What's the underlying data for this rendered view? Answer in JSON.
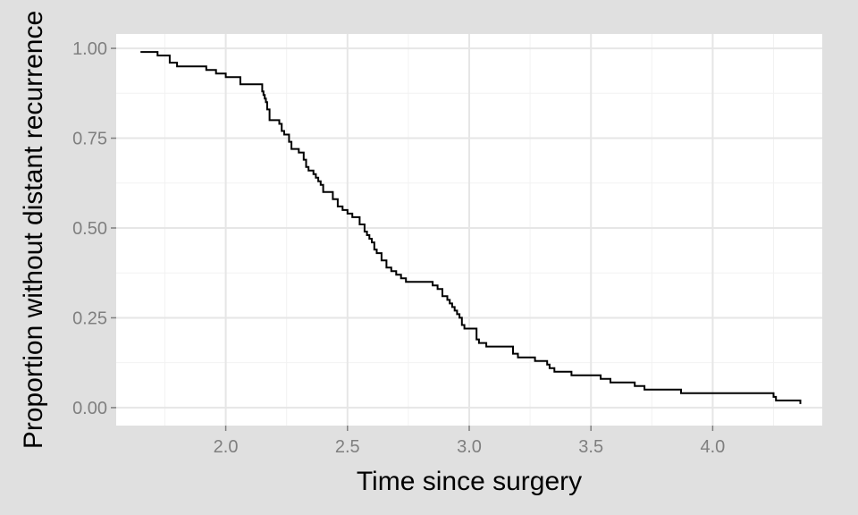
{
  "chart_data": {
    "type": "line",
    "step": true,
    "xlabel": "Time since surgery",
    "ylabel": "Proportion without distant recurrence",
    "xlim": [
      1.55,
      4.45
    ],
    "ylim": [
      -0.05,
      1.04
    ],
    "x_ticks": [
      2.0,
      2.5,
      3.0,
      3.5,
      4.0
    ],
    "x_tick_labels": [
      "2.0",
      "2.5",
      "3.0",
      "3.5",
      "4.0"
    ],
    "y_ticks": [
      0.0,
      0.25,
      0.5,
      0.75,
      1.0
    ],
    "y_tick_labels": [
      "0.00",
      "0.25",
      "0.50",
      "0.75",
      "1.00"
    ],
    "grid": true,
    "colors": {
      "background": "#e0e0e0",
      "panel": "#ffffff",
      "major_grid": "#e6e6e6",
      "minor_grid": "#f2f2f2",
      "line": "#000000",
      "tick_text": "#7f7f7f"
    },
    "series": [
      {
        "x": [
          1.65,
          1.72,
          1.77,
          1.8,
          1.88,
          1.92,
          1.96,
          2.0,
          2.06,
          2.15,
          2.155,
          2.16,
          2.165,
          2.17,
          2.18,
          2.22,
          2.23,
          2.24,
          2.26,
          2.27,
          2.3,
          2.32,
          2.33,
          2.34,
          2.36,
          2.37,
          2.38,
          2.39,
          2.4,
          2.42,
          2.44,
          2.46,
          2.48,
          2.5,
          2.52,
          2.55,
          2.57,
          2.58,
          2.59,
          2.6,
          2.61,
          2.62,
          2.64,
          2.66,
          2.67,
          2.68,
          2.69,
          2.7,
          2.72,
          2.74,
          2.76,
          2.85,
          2.87,
          2.89,
          2.91,
          2.92,
          2.93,
          2.94,
          2.95,
          2.96,
          2.97,
          2.98,
          3.0,
          3.03,
          3.04,
          3.05,
          3.07,
          3.09,
          3.15,
          3.18,
          3.2,
          3.25,
          3.27,
          3.3,
          3.32,
          3.33,
          3.35,
          3.42,
          3.54,
          3.58,
          3.68,
          3.72,
          3.87,
          4.25,
          4.26,
          4.36
        ],
        "y": [
          0.99,
          0.98,
          0.96,
          0.95,
          0.95,
          0.94,
          0.93,
          0.92,
          0.9,
          0.88,
          0.87,
          0.86,
          0.85,
          0.83,
          0.8,
          0.79,
          0.77,
          0.76,
          0.74,
          0.72,
          0.71,
          0.69,
          0.67,
          0.66,
          0.65,
          0.64,
          0.63,
          0.62,
          0.6,
          0.6,
          0.58,
          0.56,
          0.55,
          0.54,
          0.53,
          0.51,
          0.49,
          0.48,
          0.47,
          0.46,
          0.44,
          0.43,
          0.41,
          0.39,
          0.39,
          0.38,
          0.38,
          0.37,
          0.36,
          0.35,
          0.35,
          0.34,
          0.33,
          0.31,
          0.3,
          0.29,
          0.28,
          0.27,
          0.26,
          0.25,
          0.23,
          0.22,
          0.22,
          0.19,
          0.18,
          0.18,
          0.17,
          0.17,
          0.17,
          0.15,
          0.14,
          0.14,
          0.13,
          0.13,
          0.12,
          0.11,
          0.1,
          0.09,
          0.08,
          0.07,
          0.06,
          0.05,
          0.04,
          0.03,
          0.02,
          0.01
        ]
      }
    ]
  }
}
